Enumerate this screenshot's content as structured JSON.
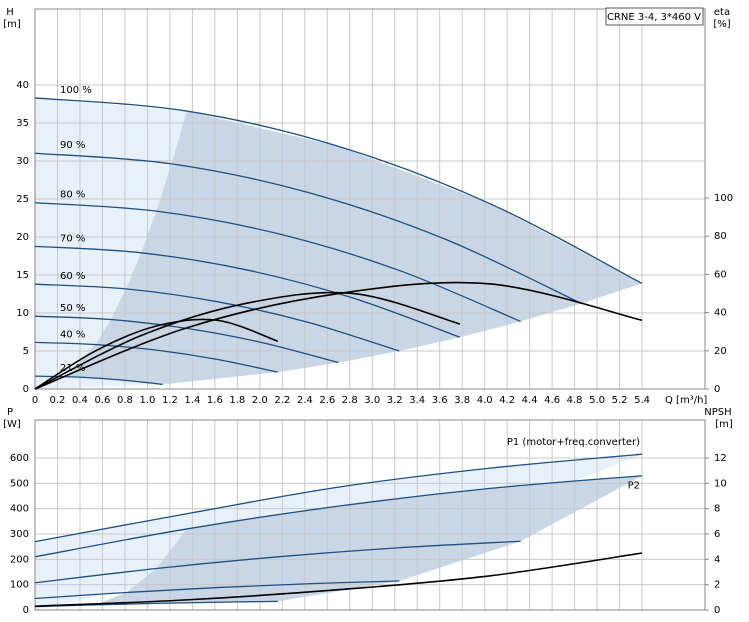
{
  "chart_data": [
    {
      "type": "line",
      "ylabel": "H",
      "yunit": "[m]",
      "y2label": "eta",
      "y2unit": "[%]",
      "xlabel": "Q [m³/h]",
      "annotation": "CRNE 3-4, 3*460 V",
      "xlim": [
        0,
        5.96
      ],
      "xticks": [
        0,
        0.2,
        0.4,
        0.6,
        0.8,
        {
          "value": 1,
          "label": "1.0"
        },
        1.2,
        1.4,
        1.6,
        1.8,
        {
          "value": 2,
          "label": "2.0"
        },
        2.2,
        2.4,
        2.6,
        2.8,
        {
          "value": 3,
          "label": "3.0"
        },
        3.2,
        3.4,
        3.6,
        3.8,
        {
          "value": 4,
          "label": "4.0"
        },
        4.2,
        4.4,
        4.6,
        4.8,
        {
          "value": 5,
          "label": "5.0"
        },
        5.2,
        5.4
      ],
      "ylim": [
        0,
        50
      ],
      "yticks": [
        0,
        5,
        10,
        15,
        20,
        25,
        30,
        35,
        40
      ],
      "y2lim": [
        0,
        199
      ],
      "y2ticks": [
        0,
        20,
        40,
        60,
        80,
        100
      ],
      "grid": true,
      "series": [
        {
          "name": "100 %",
          "color": "#1f4f82",
          "x": [
            0,
            1.35,
            2.7,
            4.05,
            5.4
          ],
          "values": [
            38.3,
            36.57,
            31.93,
            24.37,
            13.89
          ]
        },
        {
          "name": "90 %",
          "color": "#1f4f82",
          "x": [
            0,
            1.215,
            2.43,
            3.645,
            4.86
          ],
          "values": [
            31.02,
            29.62,
            25.86,
            19.74,
            11.25
          ]
        },
        {
          "name": "80 %",
          "color": "#1f4f82",
          "x": [
            0,
            1.08,
            2.16,
            3.24,
            4.32
          ],
          "values": [
            24.51,
            23.4,
            20.44,
            15.6,
            8.89
          ]
        },
        {
          "name": "70 %",
          "color": "#1f4f82",
          "x": [
            0,
            0.945,
            1.89,
            2.835,
            3.78
          ],
          "values": [
            18.77,
            17.92,
            15.65,
            11.94,
            6.81
          ]
        },
        {
          "name": "60 %",
          "color": "#1f4f82",
          "x": [
            0,
            0.81,
            1.62,
            2.43,
            3.24
          ],
          "values": [
            13.79,
            13.17,
            11.49,
            8.77,
            5.0
          ]
        },
        {
          "name": "50 %",
          "color": "#1f4f82",
          "x": [
            0,
            0.675,
            1.35,
            2.025,
            2.7
          ],
          "values": [
            9.58,
            9.14,
            7.98,
            6.09,
            3.47
          ]
        },
        {
          "name": "40 %",
          "color": "#1f4f82",
          "x": [
            0,
            0.54,
            1.08,
            1.62,
            2.16
          ],
          "values": [
            6.13,
            5.85,
            5.11,
            3.9,
            2.22
          ]
        },
        {
          "name": "21 %",
          "color": "#1f4f82",
          "x": [
            0,
            0.2835,
            0.567,
            0.8505,
            1.134
          ],
          "values": [
            1.69,
            1.61,
            1.41,
            1.07,
            0.61
          ]
        },
        {
          "axis": "y2",
          "color": "#000000",
          "x": [
            0,
            1.35,
            2.7,
            4.05,
            5.4
          ],
          "values": [
            0,
            32,
            50,
            55,
            36
          ]
        },
        {
          "axis": "y2",
          "color": "#000000",
          "x": [
            0,
            0.945,
            1.89,
            2.835,
            3.78
          ],
          "values": [
            0,
            28,
            45,
            50,
            34
          ]
        },
        {
          "axis": "y2",
          "color": "#000000",
          "x": [
            0,
            0.54,
            1.08,
            1.62,
            2.16
          ],
          "values": [
            0,
            20,
            33,
            36,
            25
          ]
        }
      ]
    },
    {
      "type": "line",
      "ylabel": "P",
      "yunit": "[W]",
      "y2label": "NPSH",
      "y2unit": "[m]",
      "xlim": [
        0,
        5.96
      ],
      "xticks": [
        0,
        0.2,
        0.4,
        0.6,
        0.8,
        1,
        1.2,
        1.4,
        1.6,
        1.8,
        2,
        2.2,
        2.4,
        2.6,
        2.8,
        3,
        3.2,
        3.4,
        3.6,
        3.8,
        4,
        4.2,
        4.4,
        4.6,
        4.8,
        5,
        5.2,
        5.4
      ],
      "ylim": [
        0,
        750
      ],
      "yticks": [
        0,
        100,
        200,
        300,
        400,
        500,
        600
      ],
      "y2lim": [
        0,
        15
      ],
      "y2ticks": [
        0,
        2,
        4,
        6,
        8,
        10,
        12
      ],
      "grid": true,
      "series": [
        {
          "name": "P1 (motor+freq.converter)",
          "color": "#1f4f82",
          "x": [
            0,
            1.35,
            2.7,
            4.05,
            5.4
          ],
          "values": [
            270,
            380,
            485,
            560,
            615
          ]
        },
        {
          "name": "P2",
          "color": "#1f4f82",
          "x": [
            0,
            1.35,
            2.7,
            4.05,
            5.4
          ],
          "values": [
            210,
            320,
            410,
            480,
            530
          ]
        },
        {
          "color": "#1f4f82",
          "x": [
            0,
            1.08,
            2.16,
            3.24,
            4.32
          ],
          "values": [
            107.5,
            163.8,
            209.9,
            245.8,
            271.4
          ]
        },
        {
          "color": "#1f4f82",
          "x": [
            0,
            0.81,
            1.62,
            2.43,
            3.24
          ],
          "values": [
            45.4,
            69.1,
            88.6,
            103.7,
            114.5
          ]
        },
        {
          "color": "#1f4f82",
          "x": [
            0,
            0.54,
            1.08,
            1.62,
            2.16
          ],
          "values": [
            13.4,
            20.5,
            26.2,
            30.7,
            33.9
          ]
        },
        {
          "axis": "y2",
          "color": "#000000",
          "x": [
            0,
            1.35,
            2.7,
            4.05,
            5.4
          ],
          "values": [
            0.3,
            0.8,
            1.6,
            2.7,
            4.5
          ]
        }
      ]
    }
  ]
}
